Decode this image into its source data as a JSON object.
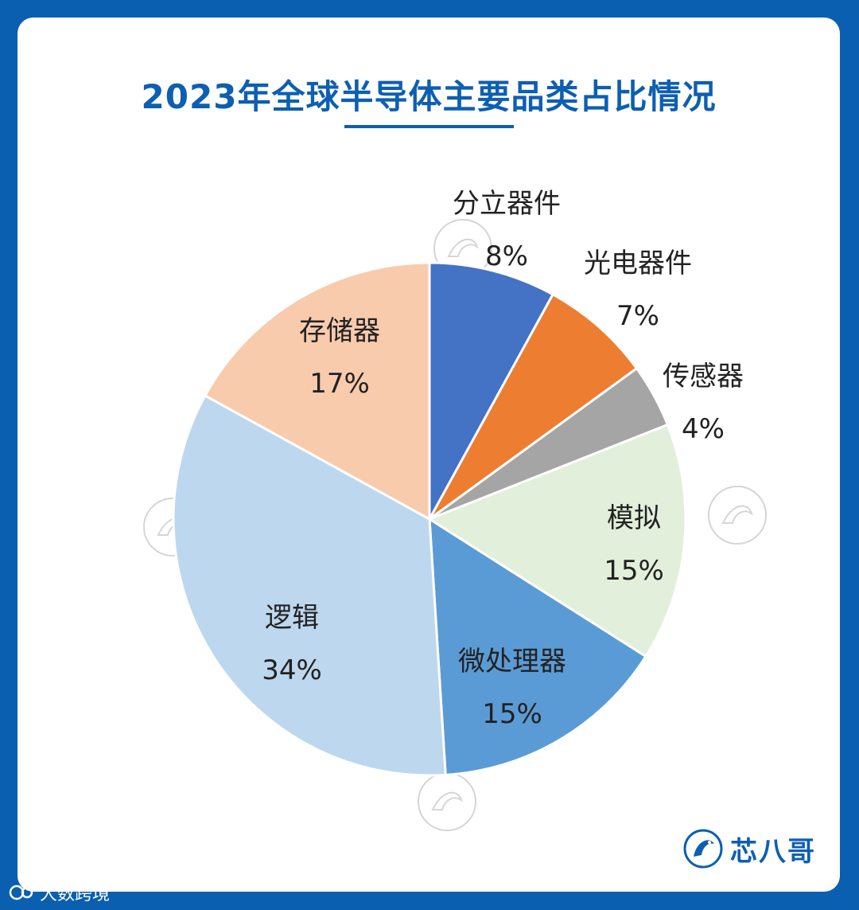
{
  "header": {
    "title": "2023年全球半导体主要品类占比情况"
  },
  "chart_data": {
    "type": "pie",
    "title": "2023年全球半导体主要品类占比情况",
    "slices": [
      {
        "label": "分立器件",
        "value": 8,
        "value_label": "8%",
        "color": "#4472c4"
      },
      {
        "label": "光电器件",
        "value": 7,
        "value_label": "7%",
        "color": "#ed7d31"
      },
      {
        "label": "传感器",
        "value": 4,
        "value_label": "4%",
        "color": "#a5a5a5"
      },
      {
        "label": "模拟",
        "value": 15,
        "value_label": "15%",
        "color": "#e2efda"
      },
      {
        "label": "微处理器",
        "value": 15,
        "value_label": "15%",
        "color": "#5b9bd5"
      },
      {
        "label": "逻辑",
        "value": 34,
        "value_label": "34%",
        "color": "#bdd7ee"
      },
      {
        "label": "存储器",
        "value": 17,
        "value_label": "17%",
        "color": "#f8cbad"
      }
    ]
  },
  "brand": {
    "name": "芯八哥"
  },
  "source": {
    "text": "大数跨境"
  }
}
